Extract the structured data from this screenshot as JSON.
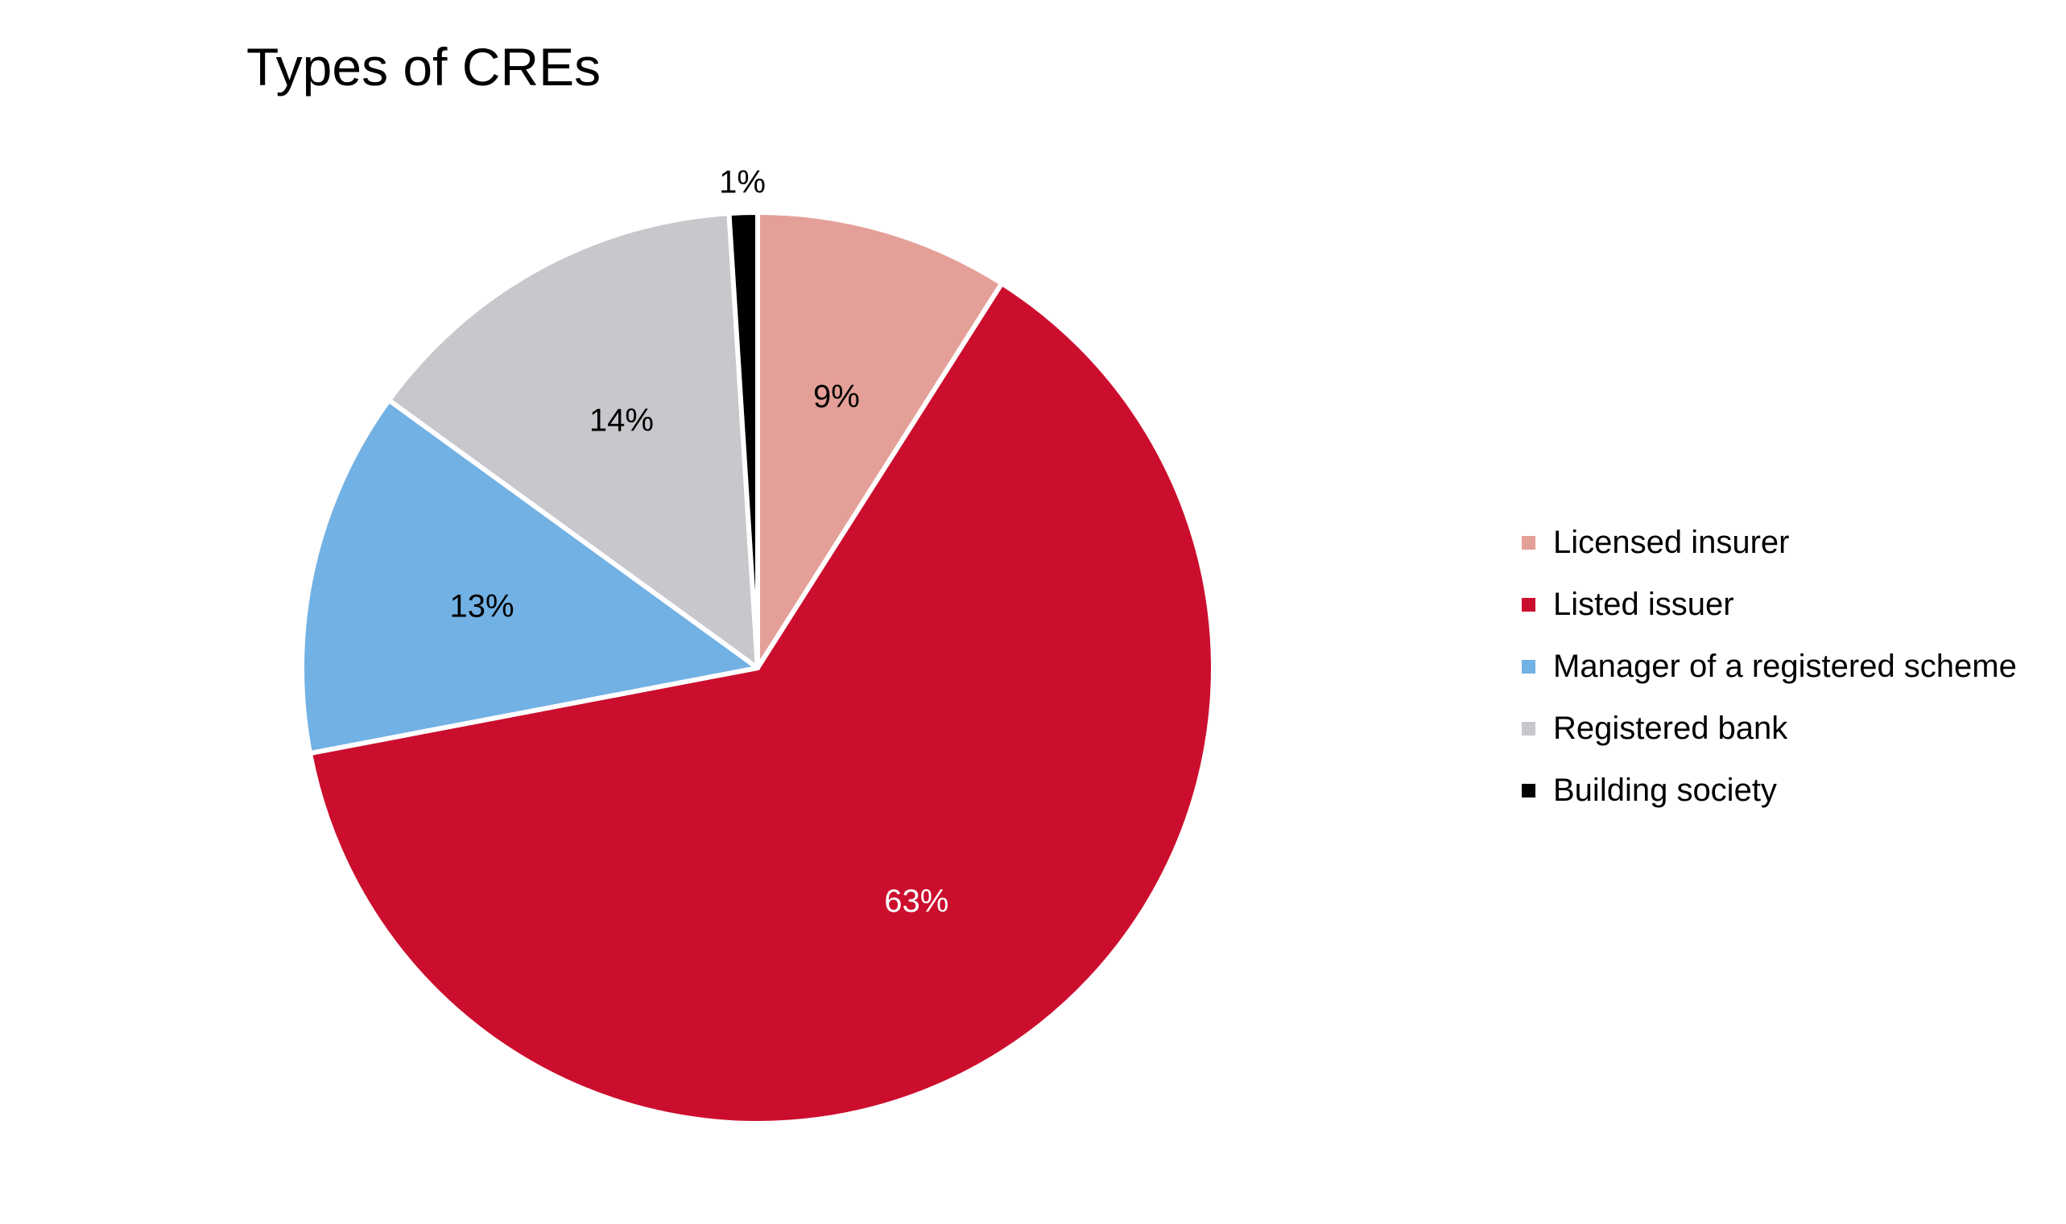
{
  "chart_data": {
    "type": "pie",
    "title": "Types of CREs",
    "start_angle_deg": 0,
    "direction": "clockwise",
    "legend_position": "right",
    "slices": [
      {
        "name": "Licensed insurer",
        "value": 9,
        "label": "9%",
        "color": "#E4A098",
        "label_color": "#000000"
      },
      {
        "name": "Listed issuer",
        "value": 63,
        "label": "63%",
        "color": "#CC0E2E",
        "label_color": "#FFFFFF"
      },
      {
        "name": "Manager of a registered scheme",
        "value": 13,
        "label": "13%",
        "color": "#72B1E4",
        "label_color": "#000000"
      },
      {
        "name": "Registered bank",
        "value": 14,
        "label": "14%",
        "color": "#C8C8CC",
        "label_color": "#000000"
      },
      {
        "name": "Building society",
        "value": 1,
        "label": "1%",
        "color": "#000000",
        "label_color": "#000000",
        "label_outside": true
      }
    ]
  }
}
